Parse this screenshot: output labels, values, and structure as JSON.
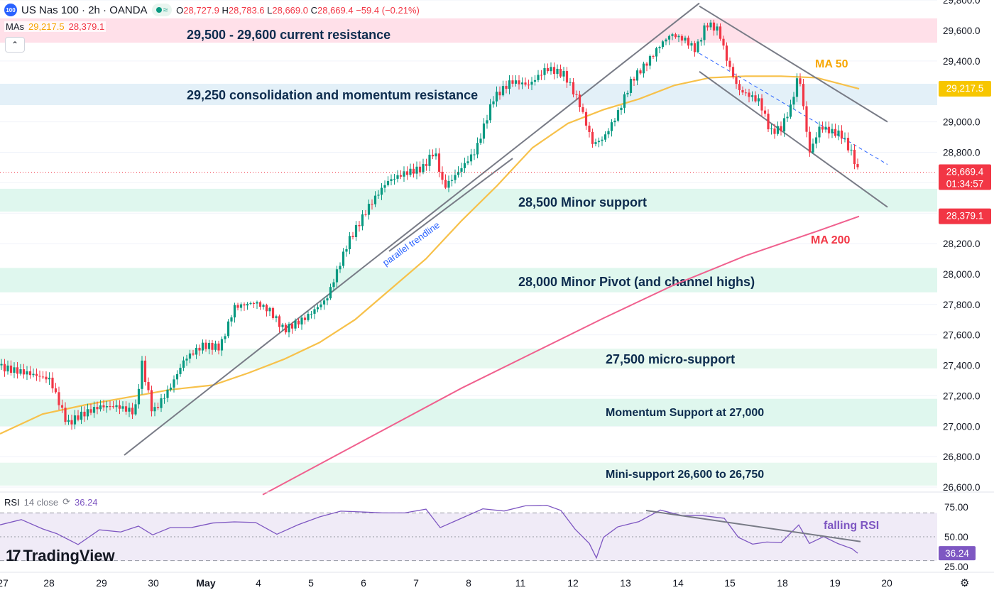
{
  "header": {
    "symbol_badge": "100",
    "title": "US Nas 100 · 2h · OANDA",
    "market_status": "≈",
    "ohlc": {
      "o_label": "O",
      "o": "28,727.9",
      "h_label": "H",
      "h": "28,783.6",
      "l_label": "L",
      "l": "28,669.0",
      "c_label": "C",
      "c": "28,669.4",
      "change": "−59.4 (−0.21%)"
    }
  },
  "mas_legend": {
    "label": "MAs",
    "ma50": "29,217.5",
    "ma200": "28,379.1"
  },
  "rsi_legend": {
    "label": "RSI",
    "params": "14 close",
    "value": "36.24"
  },
  "logo": {
    "text": "TradingView",
    "mark": "17"
  },
  "icons": {
    "settings": "gear-icon",
    "collapse": "chevron-up-icon",
    "symbol": "symbol-badge"
  },
  "colors": {
    "up": "#089981",
    "down": "#f23645",
    "ma50": "#f7c14a",
    "ma200": "#f0608e",
    "rsi": "#7e57c2",
    "annotation_text": "#0d2c4e",
    "trendline": "#787b86"
  },
  "chart_data": [
    {
      "type": "candlestick",
      "title": "US Nas 100 · 2h · OANDA",
      "ylim": [
        26550,
        29800
      ],
      "y_ticks": [
        "26,600.0",
        "26,800.0",
        "27,000.0",
        "27,200.0",
        "27,400.0",
        "27,600.0",
        "27,800.0",
        "28,000.0",
        "28,200.0",
        "28,400.0",
        "28,600.0",
        "28,800.0",
        "29,000.0",
        "29,200.0",
        "29,400.0",
        "29,600.0",
        "29,800.0"
      ],
      "x_ticks": [
        "27",
        "28",
        "29",
        "30",
        "May",
        "4",
        "5",
        "6",
        "7",
        "8",
        "11",
        "12",
        "13",
        "14",
        "15",
        "18",
        "19",
        "20"
      ],
      "price_labels": {
        "ma50": "29,217.5",
        "last": "28,669.4",
        "countdown": "01:34:57",
        "ma200": "28,379.1"
      },
      "zones": [
        {
          "label": "29,500 - 29,600 current resistance",
          "from": 29520,
          "to": 29680,
          "color": "#ffe0e9"
        },
        {
          "label": "29,250 consolidation and momentum resistance",
          "from": 29110,
          "to": 29250,
          "color": "#e3f0f8"
        },
        {
          "label": "28,500 Minor support",
          "from": 28410,
          "to": 28560,
          "color": "#dff7ee"
        },
        {
          "label": "28,000 Minor Pivot (and channel highs)",
          "from": 27880,
          "to": 28040,
          "color": "#dff7ee"
        },
        {
          "label": "27,500 micro-support",
          "from": 27380,
          "to": 27510,
          "color": "#e6f8ef"
        },
        {
          "label": "Momentum Support at 27,000",
          "from": 27000,
          "to": 27180,
          "color": "#dff7ee"
        },
        {
          "label": "Mini-support 26,600 to 26,750",
          "from": 26610,
          "to": 26760,
          "color": "#e6f8ef"
        }
      ],
      "annotations": [
        {
          "text": "MA 50",
          "color": "#f7a600"
        },
        {
          "text": "MA 200",
          "color": "#f23645"
        },
        {
          "text": "parallel trendline",
          "color": "#2962ff"
        }
      ],
      "ma50": [
        [
          0,
          26950
        ],
        [
          60,
          27080
        ],
        [
          120,
          27140
        ],
        [
          180,
          27190
        ],
        [
          240,
          27240
        ],
        [
          300,
          27270
        ],
        [
          350,
          27350
        ],
        [
          400,
          27440
        ],
        [
          450,
          27550
        ],
        [
          500,
          27700
        ],
        [
          550,
          27900
        ],
        [
          600,
          28100
        ],
        [
          650,
          28350
        ],
        [
          700,
          28580
        ],
        [
          750,
          28830
        ],
        [
          800,
          28990
        ],
        [
          850,
          29080
        ],
        [
          900,
          29150
        ],
        [
          950,
          29240
        ],
        [
          1000,
          29290
        ],
        [
          1050,
          29300
        ],
        [
          1100,
          29300
        ],
        [
          1150,
          29290
        ],
        [
          1210,
          29217
        ]
      ],
      "ma200": [
        [
          370,
          26550
        ],
        [
          450,
          26750
        ],
        [
          550,
          27000
        ],
        [
          650,
          27250
        ],
        [
          750,
          27480
        ],
        [
          850,
          27710
        ],
        [
          950,
          27930
        ],
        [
          1050,
          28120
        ],
        [
          1150,
          28280
        ],
        [
          1210,
          28379
        ]
      ],
      "trendlines": [
        {
          "from": [
            175,
            26810
          ],
          "to": [
            985,
            29780
          ],
          "style": "solid"
        },
        {
          "from": [
            548,
            28150
          ],
          "to": [
            722,
            28760
          ],
          "style": "solid"
        },
        {
          "from": [
            985,
            29760
          ],
          "to": [
            1250,
            29000
          ],
          "style": "solid"
        },
        {
          "from": [
            985,
            29330
          ],
          "to": [
            1250,
            28440
          ],
          "style": "solid"
        },
        {
          "from": [
            985,
            29450
          ],
          "to": [
            1250,
            28720
          ],
          "style": "dashed"
        }
      ],
      "candle_keypoints": [
        [
          2,
          27400
        ],
        [
          40,
          27350
        ],
        [
          70,
          27300
        ],
        [
          95,
          27000
        ],
        [
          110,
          27050
        ],
        [
          140,
          27120
        ],
        [
          165,
          27130
        ],
        [
          190,
          27100
        ],
        [
          200,
          27420
        ],
        [
          215,
          27100
        ],
        [
          240,
          27270
        ],
        [
          260,
          27450
        ],
        [
          285,
          27530
        ],
        [
          310,
          27510
        ],
        [
          330,
          27770
        ],
        [
          360,
          27800
        ],
        [
          380,
          27750
        ],
        [
          400,
          27630
        ],
        [
          430,
          27720
        ],
        [
          460,
          27850
        ],
        [
          490,
          28220
        ],
        [
          520,
          28450
        ],
        [
          545,
          28600
        ],
        [
          570,
          28650
        ],
        [
          595,
          28680
        ],
        [
          612,
          28800
        ],
        [
          625,
          28560
        ],
        [
          640,
          28640
        ],
        [
          670,
          28820
        ],
        [
          695,
          29170
        ],
        [
          720,
          29280
        ],
        [
          745,
          29250
        ],
        [
          770,
          29350
        ],
        [
          795,
          29300
        ],
        [
          815,
          29120
        ],
        [
          835,
          28840
        ],
        [
          850,
          28880
        ],
        [
          870,
          29050
        ],
        [
          890,
          29280
        ],
        [
          910,
          29390
        ],
        [
          930,
          29520
        ],
        [
          945,
          29590
        ],
        [
          965,
          29550
        ],
        [
          980,
          29480
        ],
        [
          995,
          29650
        ],
        [
          1012,
          29600
        ],
        [
          1025,
          29380
        ],
        [
          1040,
          29200
        ],
        [
          1055,
          29160
        ],
        [
          1070,
          29120
        ],
        [
          1085,
          28920
        ],
        [
          1100,
          28950
        ],
        [
          1115,
          29110
        ],
        [
          1125,
          29330
        ],
        [
          1140,
          28800
        ],
        [
          1155,
          28980
        ],
        [
          1170,
          28950
        ],
        [
          1185,
          28930
        ],
        [
          1200,
          28800
        ],
        [
          1210,
          28669
        ]
      ]
    },
    {
      "type": "line",
      "title": "RSI 14 close",
      "ylim": [
        22,
        82
      ],
      "y_ticks": [
        "75.00",
        "50.00",
        "25.00"
      ],
      "value_label": "36.24",
      "levels": [
        70,
        30
      ],
      "annotations": [
        {
          "text": "falling RSI",
          "color": "#7e57c2"
        }
      ],
      "trendline": {
        "from": [
          910,
          72
        ],
        "to": [
          1212,
          46
        ]
      },
      "keypoints": [
        [
          0,
          60
        ],
        [
          30,
          62
        ],
        [
          60,
          58
        ],
        [
          80,
          52
        ],
        [
          110,
          46
        ],
        [
          140,
          55
        ],
        [
          170,
          52
        ],
        [
          195,
          60
        ],
        [
          215,
          54
        ],
        [
          240,
          56
        ],
        [
          270,
          60
        ],
        [
          300,
          62
        ],
        [
          330,
          60
        ],
        [
          360,
          63
        ],
        [
          390,
          54
        ],
        [
          420,
          58
        ],
        [
          450,
          66
        ],
        [
          480,
          74
        ],
        [
          510,
          70
        ],
        [
          540,
          68
        ],
        [
          570,
          72
        ],
        [
          600,
          74
        ],
        [
          620,
          60
        ],
        [
          650,
          64
        ],
        [
          680,
          72
        ],
        [
          710,
          74
        ],
        [
          740,
          76
        ],
        [
          770,
          74
        ],
        [
          790,
          70
        ],
        [
          810,
          56
        ],
        [
          830,
          46
        ],
        [
          840,
          30
        ],
        [
          850,
          52
        ],
        [
          870,
          60
        ],
        [
          900,
          64
        ],
        [
          930,
          70
        ],
        [
          960,
          68
        ],
        [
          990,
          70
        ],
        [
          1020,
          64
        ],
        [
          1040,
          50
        ],
        [
          1060,
          46
        ],
        [
          1080,
          48
        ],
        [
          1100,
          46
        ],
        [
          1125,
          58
        ],
        [
          1140,
          42
        ],
        [
          1160,
          48
        ],
        [
          1180,
          44
        ],
        [
          1200,
          40
        ],
        [
          1208,
          36.24
        ]
      ]
    }
  ]
}
